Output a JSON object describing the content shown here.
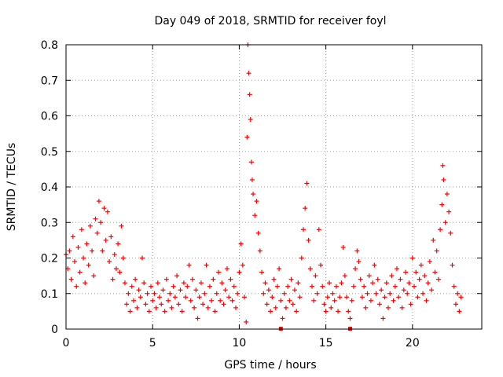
{
  "chart_data": {
    "type": "scatter",
    "title": "Day 049 of 2018, SRMTID for receiver foyl",
    "xlabel": "GPS time / hours",
    "ylabel": "SRMTID / TECUs",
    "xlim": [
      0,
      24
    ],
    "ylim": [
      0,
      0.8
    ],
    "x_ticks": [
      0,
      5,
      10,
      15,
      20
    ],
    "x_tick_labels": [
      "0",
      "5",
      "10",
      "15",
      "20"
    ],
    "y_ticks": [
      0,
      0.1,
      0.2,
      0.3,
      0.4,
      0.5,
      0.6,
      0.7,
      0.8
    ],
    "y_tick_labels": [
      "0",
      "0.1",
      "0.2",
      "0.3",
      "0.4",
      "0.5",
      "0.6",
      "0.7",
      "0.8"
    ],
    "grid": true,
    "marker": "+",
    "color": "#ff0000",
    "series": [
      {
        "name": "SRMTID",
        "points": [
          [
            0.0,
            0.21
          ],
          [
            0.1,
            0.17
          ],
          [
            0.2,
            0.22
          ],
          [
            0.3,
            0.14
          ],
          [
            0.4,
            0.26
          ],
          [
            0.5,
            0.19
          ],
          [
            0.6,
            0.12
          ],
          [
            0.7,
            0.23
          ],
          [
            0.8,
            0.16
          ],
          [
            0.9,
            0.28
          ],
          [
            1.0,
            0.2
          ],
          [
            1.1,
            0.13
          ],
          [
            1.2,
            0.24
          ],
          [
            1.3,
            0.18
          ],
          [
            1.4,
            0.29
          ],
          [
            1.5,
            0.22
          ],
          [
            1.6,
            0.15
          ],
          [
            1.7,
            0.31
          ],
          [
            1.8,
            0.27
          ],
          [
            1.9,
            0.36
          ],
          [
            2.0,
            0.3
          ],
          [
            2.1,
            0.22
          ],
          [
            2.2,
            0.34
          ],
          [
            2.3,
            0.25
          ],
          [
            2.4,
            0.33
          ],
          [
            2.5,
            0.19
          ],
          [
            2.6,
            0.26
          ],
          [
            2.7,
            0.14
          ],
          [
            2.8,
            0.21
          ],
          [
            2.9,
            0.17
          ],
          [
            3.0,
            0.24
          ],
          [
            3.1,
            0.16
          ],
          [
            3.2,
            0.29
          ],
          [
            3.3,
            0.2
          ],
          [
            3.4,
            0.13
          ],
          [
            3.5,
            0.07
          ],
          [
            3.6,
            0.1
          ],
          [
            3.7,
            0.05
          ],
          [
            3.8,
            0.12
          ],
          [
            3.9,
            0.08
          ],
          [
            4.0,
            0.14
          ],
          [
            4.1,
            0.06
          ],
          [
            4.2,
            0.11
          ],
          [
            4.3,
            0.09
          ],
          [
            4.4,
            0.2
          ],
          [
            4.5,
            0.13
          ],
          [
            4.6,
            0.07
          ],
          [
            4.7,
            0.1
          ],
          [
            4.8,
            0.05
          ],
          [
            4.9,
            0.12
          ],
          [
            5.0,
            0.08
          ],
          [
            5.1,
            0.1
          ],
          [
            5.2,
            0.06
          ],
          [
            5.3,
            0.13
          ],
          [
            5.4,
            0.09
          ],
          [
            5.5,
            0.07
          ],
          [
            5.6,
            0.11
          ],
          [
            5.7,
            0.05
          ],
          [
            5.8,
            0.14
          ],
          [
            5.9,
            0.08
          ],
          [
            6.0,
            0.1
          ],
          [
            6.1,
            0.06
          ],
          [
            6.2,
            0.12
          ],
          [
            6.3,
            0.09
          ],
          [
            6.4,
            0.15
          ],
          [
            6.5,
            0.07
          ],
          [
            6.6,
            0.11
          ],
          [
            6.7,
            0.05
          ],
          [
            6.8,
            0.13
          ],
          [
            6.9,
            0.09
          ],
          [
            7.0,
            0.12
          ],
          [
            7.1,
            0.18
          ],
          [
            7.2,
            0.08
          ],
          [
            7.3,
            0.14
          ],
          [
            7.4,
            0.06
          ],
          [
            7.5,
            0.11
          ],
          [
            7.6,
            0.03
          ],
          [
            7.7,
            0.09
          ],
          [
            7.8,
            0.13
          ],
          [
            7.9,
            0.07
          ],
          [
            8.0,
            0.1
          ],
          [
            8.1,
            0.18
          ],
          [
            8.2,
            0.06
          ],
          [
            8.3,
            0.12
          ],
          [
            8.4,
            0.08
          ],
          [
            8.5,
            0.14
          ],
          [
            8.6,
            0.05
          ],
          [
            8.7,
            0.1
          ],
          [
            8.8,
            0.16
          ],
          [
            8.9,
            0.08
          ],
          [
            9.0,
            0.13
          ],
          [
            9.1,
            0.07
          ],
          [
            9.2,
            0.11
          ],
          [
            9.3,
            0.17
          ],
          [
            9.4,
            0.09
          ],
          [
            9.5,
            0.14
          ],
          [
            9.6,
            0.08
          ],
          [
            9.7,
            0.12
          ],
          [
            9.8,
            0.06
          ],
          [
            9.9,
            0.1
          ],
          [
            10.0,
            0.16
          ],
          [
            10.1,
            0.24
          ],
          [
            10.2,
            0.18
          ],
          [
            10.3,
            0.09
          ],
          [
            10.4,
            0.02
          ],
          [
            10.45,
            0.54
          ],
          [
            10.5,
            0.8
          ],
          [
            10.55,
            0.72
          ],
          [
            10.6,
            0.66
          ],
          [
            10.65,
            0.59
          ],
          [
            10.7,
            0.47
          ],
          [
            10.75,
            0.42
          ],
          [
            10.8,
            0.38
          ],
          [
            10.9,
            0.32
          ],
          [
            11.0,
            0.36
          ],
          [
            11.1,
            0.27
          ],
          [
            11.2,
            0.22
          ],
          [
            11.3,
            0.16
          ],
          [
            11.4,
            0.1
          ],
          [
            11.5,
            0.13
          ],
          [
            11.6,
            0.07
          ],
          [
            11.7,
            0.11
          ],
          [
            11.8,
            0.05
          ],
          [
            11.9,
            0.09
          ],
          [
            12.0,
            0.14
          ],
          [
            12.1,
            0.06
          ],
          [
            12.2,
            0.12
          ],
          [
            12.3,
            0.17
          ],
          [
            12.4,
            0.08
          ],
          [
            12.5,
            0.03
          ],
          [
            12.6,
            0.1
          ],
          [
            12.7,
            0.06
          ],
          [
            12.8,
            0.12
          ],
          [
            12.9,
            0.08
          ],
          [
            13.0,
            0.14
          ],
          [
            13.1,
            0.07
          ],
          [
            13.2,
            0.11
          ],
          [
            13.3,
            0.05
          ],
          [
            13.4,
            0.13
          ],
          [
            13.5,
            0.09
          ],
          [
            13.6,
            0.2
          ],
          [
            13.7,
            0.28
          ],
          [
            13.8,
            0.34
          ],
          [
            13.9,
            0.41
          ],
          [
            14.0,
            0.25
          ],
          [
            14.1,
            0.17
          ],
          [
            14.2,
            0.12
          ],
          [
            14.3,
            0.08
          ],
          [
            14.4,
            0.15
          ],
          [
            14.5,
            0.1
          ],
          [
            14.6,
            0.28
          ],
          [
            14.7,
            0.18
          ],
          [
            14.8,
            0.12
          ],
          [
            14.9,
            0.07
          ],
          [
            15.0,
            0.05
          ],
          [
            15.1,
            0.09
          ],
          [
            15.2,
            0.13
          ],
          [
            15.3,
            0.06
          ],
          [
            15.4,
            0.1
          ],
          [
            15.5,
            0.08
          ],
          [
            15.6,
            0.12
          ],
          [
            15.7,
            0.05
          ],
          [
            15.8,
            0.09
          ],
          [
            15.9,
            0.13
          ],
          [
            16.0,
            0.23
          ],
          [
            16.1,
            0.15
          ],
          [
            16.2,
            0.09
          ],
          [
            16.3,
            0.05
          ],
          [
            16.4,
            0.03
          ],
          [
            16.5,
            0.08
          ],
          [
            16.6,
            0.12
          ],
          [
            16.7,
            0.17
          ],
          [
            16.8,
            0.22
          ],
          [
            16.9,
            0.19
          ],
          [
            17.0,
            0.14
          ],
          [
            17.1,
            0.09
          ],
          [
            17.2,
            0.12
          ],
          [
            17.3,
            0.06
          ],
          [
            17.4,
            0.1
          ],
          [
            17.5,
            0.15
          ],
          [
            17.6,
            0.08
          ],
          [
            17.7,
            0.13
          ],
          [
            17.8,
            0.18
          ],
          [
            17.9,
            0.1
          ],
          [
            18.0,
            0.14
          ],
          [
            18.1,
            0.07
          ],
          [
            18.2,
            0.11
          ],
          [
            18.3,
            0.03
          ],
          [
            18.4,
            0.09
          ],
          [
            18.5,
            0.13
          ],
          [
            18.6,
            0.06
          ],
          [
            18.7,
            0.1
          ],
          [
            18.8,
            0.15
          ],
          [
            18.9,
            0.08
          ],
          [
            19.0,
            0.12
          ],
          [
            19.1,
            0.17
          ],
          [
            19.2,
            0.09
          ],
          [
            19.3,
            0.14
          ],
          [
            19.4,
            0.06
          ],
          [
            19.5,
            0.11
          ],
          [
            19.6,
            0.16
          ],
          [
            19.7,
            0.1
          ],
          [
            19.8,
            0.13
          ],
          [
            19.9,
            0.07
          ],
          [
            20.0,
            0.2
          ],
          [
            20.1,
            0.12
          ],
          [
            20.2,
            0.16
          ],
          [
            20.3,
            0.09
          ],
          [
            20.4,
            0.14
          ],
          [
            20.5,
            0.18
          ],
          [
            20.6,
            0.1
          ],
          [
            20.7,
            0.15
          ],
          [
            20.8,
            0.08
          ],
          [
            20.9,
            0.13
          ],
          [
            21.0,
            0.19
          ],
          [
            21.1,
            0.11
          ],
          [
            21.2,
            0.25
          ],
          [
            21.3,
            0.16
          ],
          [
            21.4,
            0.22
          ],
          [
            21.5,
            0.14
          ],
          [
            21.6,
            0.28
          ],
          [
            21.7,
            0.35
          ],
          [
            21.75,
            0.46
          ],
          [
            21.8,
            0.42
          ],
          [
            21.9,
            0.3
          ],
          [
            22.0,
            0.38
          ],
          [
            22.1,
            0.33
          ],
          [
            22.2,
            0.27
          ],
          [
            22.3,
            0.18
          ],
          [
            22.4,
            0.12
          ],
          [
            22.5,
            0.07
          ],
          [
            22.6,
            0.1
          ],
          [
            22.7,
            0.05
          ],
          [
            22.8,
            0.09
          ]
        ]
      }
    ],
    "bottom_markers_x": [
      12.4,
      16.4
    ]
  }
}
